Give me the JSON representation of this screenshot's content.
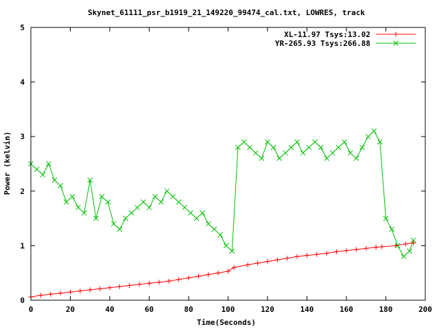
{
  "chart_data": {
    "type": "scatter",
    "title": "Skynet_61111_psr_b1919_21_149220_99474_cal.txt, LOWRES, track",
    "xlabel": "Time(Seconds)",
    "ylabel": "Power (kelvin)",
    "xlim": [
      0,
      200
    ],
    "ylim": [
      0,
      5
    ],
    "xticks": [
      "0",
      "20",
      "40",
      "60",
      "80",
      "100",
      "120",
      "140",
      "160",
      "180",
      "200"
    ],
    "yticks": [
      "0",
      "1",
      "2",
      "3",
      "4",
      "5"
    ],
    "grid": false,
    "legend_position": "top-right",
    "series": [
      {
        "name": "XL-11.97 Tsys:13.02",
        "color": "#ff0000",
        "marker": "plus",
        "x": [
          0,
          5,
          10,
          15,
          20,
          25,
          30,
          35,
          40,
          45,
          50,
          55,
          60,
          65,
          70,
          75,
          80,
          85,
          90,
          95,
          100,
          103,
          110,
          115,
          120,
          125,
          130,
          135,
          140,
          145,
          150,
          155,
          160,
          165,
          170,
          175,
          178,
          185,
          190,
          194
        ],
        "y": [
          0.06,
          0.09,
          0.11,
          0.13,
          0.15,
          0.17,
          0.19,
          0.21,
          0.23,
          0.25,
          0.27,
          0.29,
          0.31,
          0.33,
          0.35,
          0.38,
          0.41,
          0.44,
          0.47,
          0.5,
          0.53,
          0.6,
          0.65,
          0.68,
          0.71,
          0.74,
          0.77,
          0.8,
          0.82,
          0.84,
          0.86,
          0.89,
          0.91,
          0.93,
          0.95,
          0.97,
          0.98,
          1.0,
          1.03,
          1.05
        ]
      },
      {
        "name": "YR-265.93 Tsys:266.88",
        "color": "#00c000",
        "marker": "cross",
        "x": [
          0,
          3,
          6,
          9,
          12,
          15,
          18,
          21,
          24,
          27,
          30,
          33,
          36,
          39,
          42,
          45,
          48,
          51,
          54,
          57,
          60,
          63,
          66,
          69,
          72,
          75,
          78,
          81,
          84,
          87,
          90,
          93,
          96,
          99,
          102,
          105,
          108,
          111,
          114,
          117,
          120,
          123,
          126,
          129,
          132,
          135,
          138,
          141,
          144,
          147,
          150,
          153,
          156,
          159,
          162,
          165,
          168,
          171,
          174,
          177,
          180,
          183,
          186,
          189,
          192,
          194
        ],
        "y": [
          2.5,
          2.4,
          2.3,
          2.5,
          2.2,
          2.1,
          1.8,
          1.9,
          1.7,
          1.6,
          2.2,
          1.5,
          1.9,
          1.8,
          1.4,
          1.3,
          1.5,
          1.6,
          1.7,
          1.8,
          1.7,
          1.9,
          1.8,
          2.0,
          1.9,
          1.8,
          1.7,
          1.6,
          1.5,
          1.6,
          1.4,
          1.3,
          1.2,
          1.0,
          0.9,
          2.8,
          2.9,
          2.8,
          2.7,
          2.6,
          2.9,
          2.8,
          2.6,
          2.7,
          2.8,
          2.9,
          2.7,
          2.8,
          2.9,
          2.8,
          2.6,
          2.7,
          2.8,
          2.9,
          2.7,
          2.6,
          2.8,
          3.0,
          3.1,
          2.9,
          1.5,
          1.3,
          1.0,
          0.8,
          0.9,
          1.1
        ]
      }
    ]
  }
}
